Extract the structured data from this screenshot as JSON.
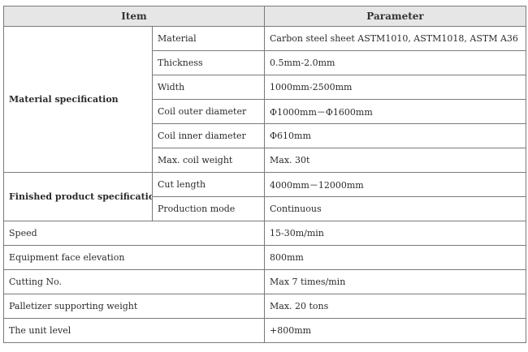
{
  "header": {
    "item": "Item",
    "parameter": "Parameter"
  },
  "material": {
    "group": "Material specification",
    "rows": [
      {
        "name": "Material",
        "value": "Carbon steel sheet ASTM1010, ASTM1018, ASTM A36"
      },
      {
        "name": "Thickness",
        "value": "0.5mm-2.0mm"
      },
      {
        "name": "Width",
        "value": "1000mm-2500mm"
      },
      {
        "name": "Coil outer diameter",
        "value": "Φ1000mm－Φ1600mm"
      },
      {
        "name": "Coil inner diameter",
        "value": "Φ610mm"
      },
      {
        "name": "Max. coil weight",
        "value": "Max. 30t"
      }
    ]
  },
  "finished": {
    "group": "Finished product specification",
    "rows": [
      {
        "name": "Cut length",
        "value": "4000mm－12000mm"
      },
      {
        "name": "Production mode",
        "value": "Continuous"
      }
    ]
  },
  "general": [
    {
      "name": "Speed",
      "value": "15-30m/min"
    },
    {
      "name": "Equipment face elevation",
      "value": "800mm"
    },
    {
      "name": "Cutting No.",
      "value": "Max 7 times/min"
    },
    {
      "name": "Palletizer supporting weight",
      "value": "Max. 20 tons"
    },
    {
      "name": "The unit level",
      "value": "+800mm"
    }
  ]
}
